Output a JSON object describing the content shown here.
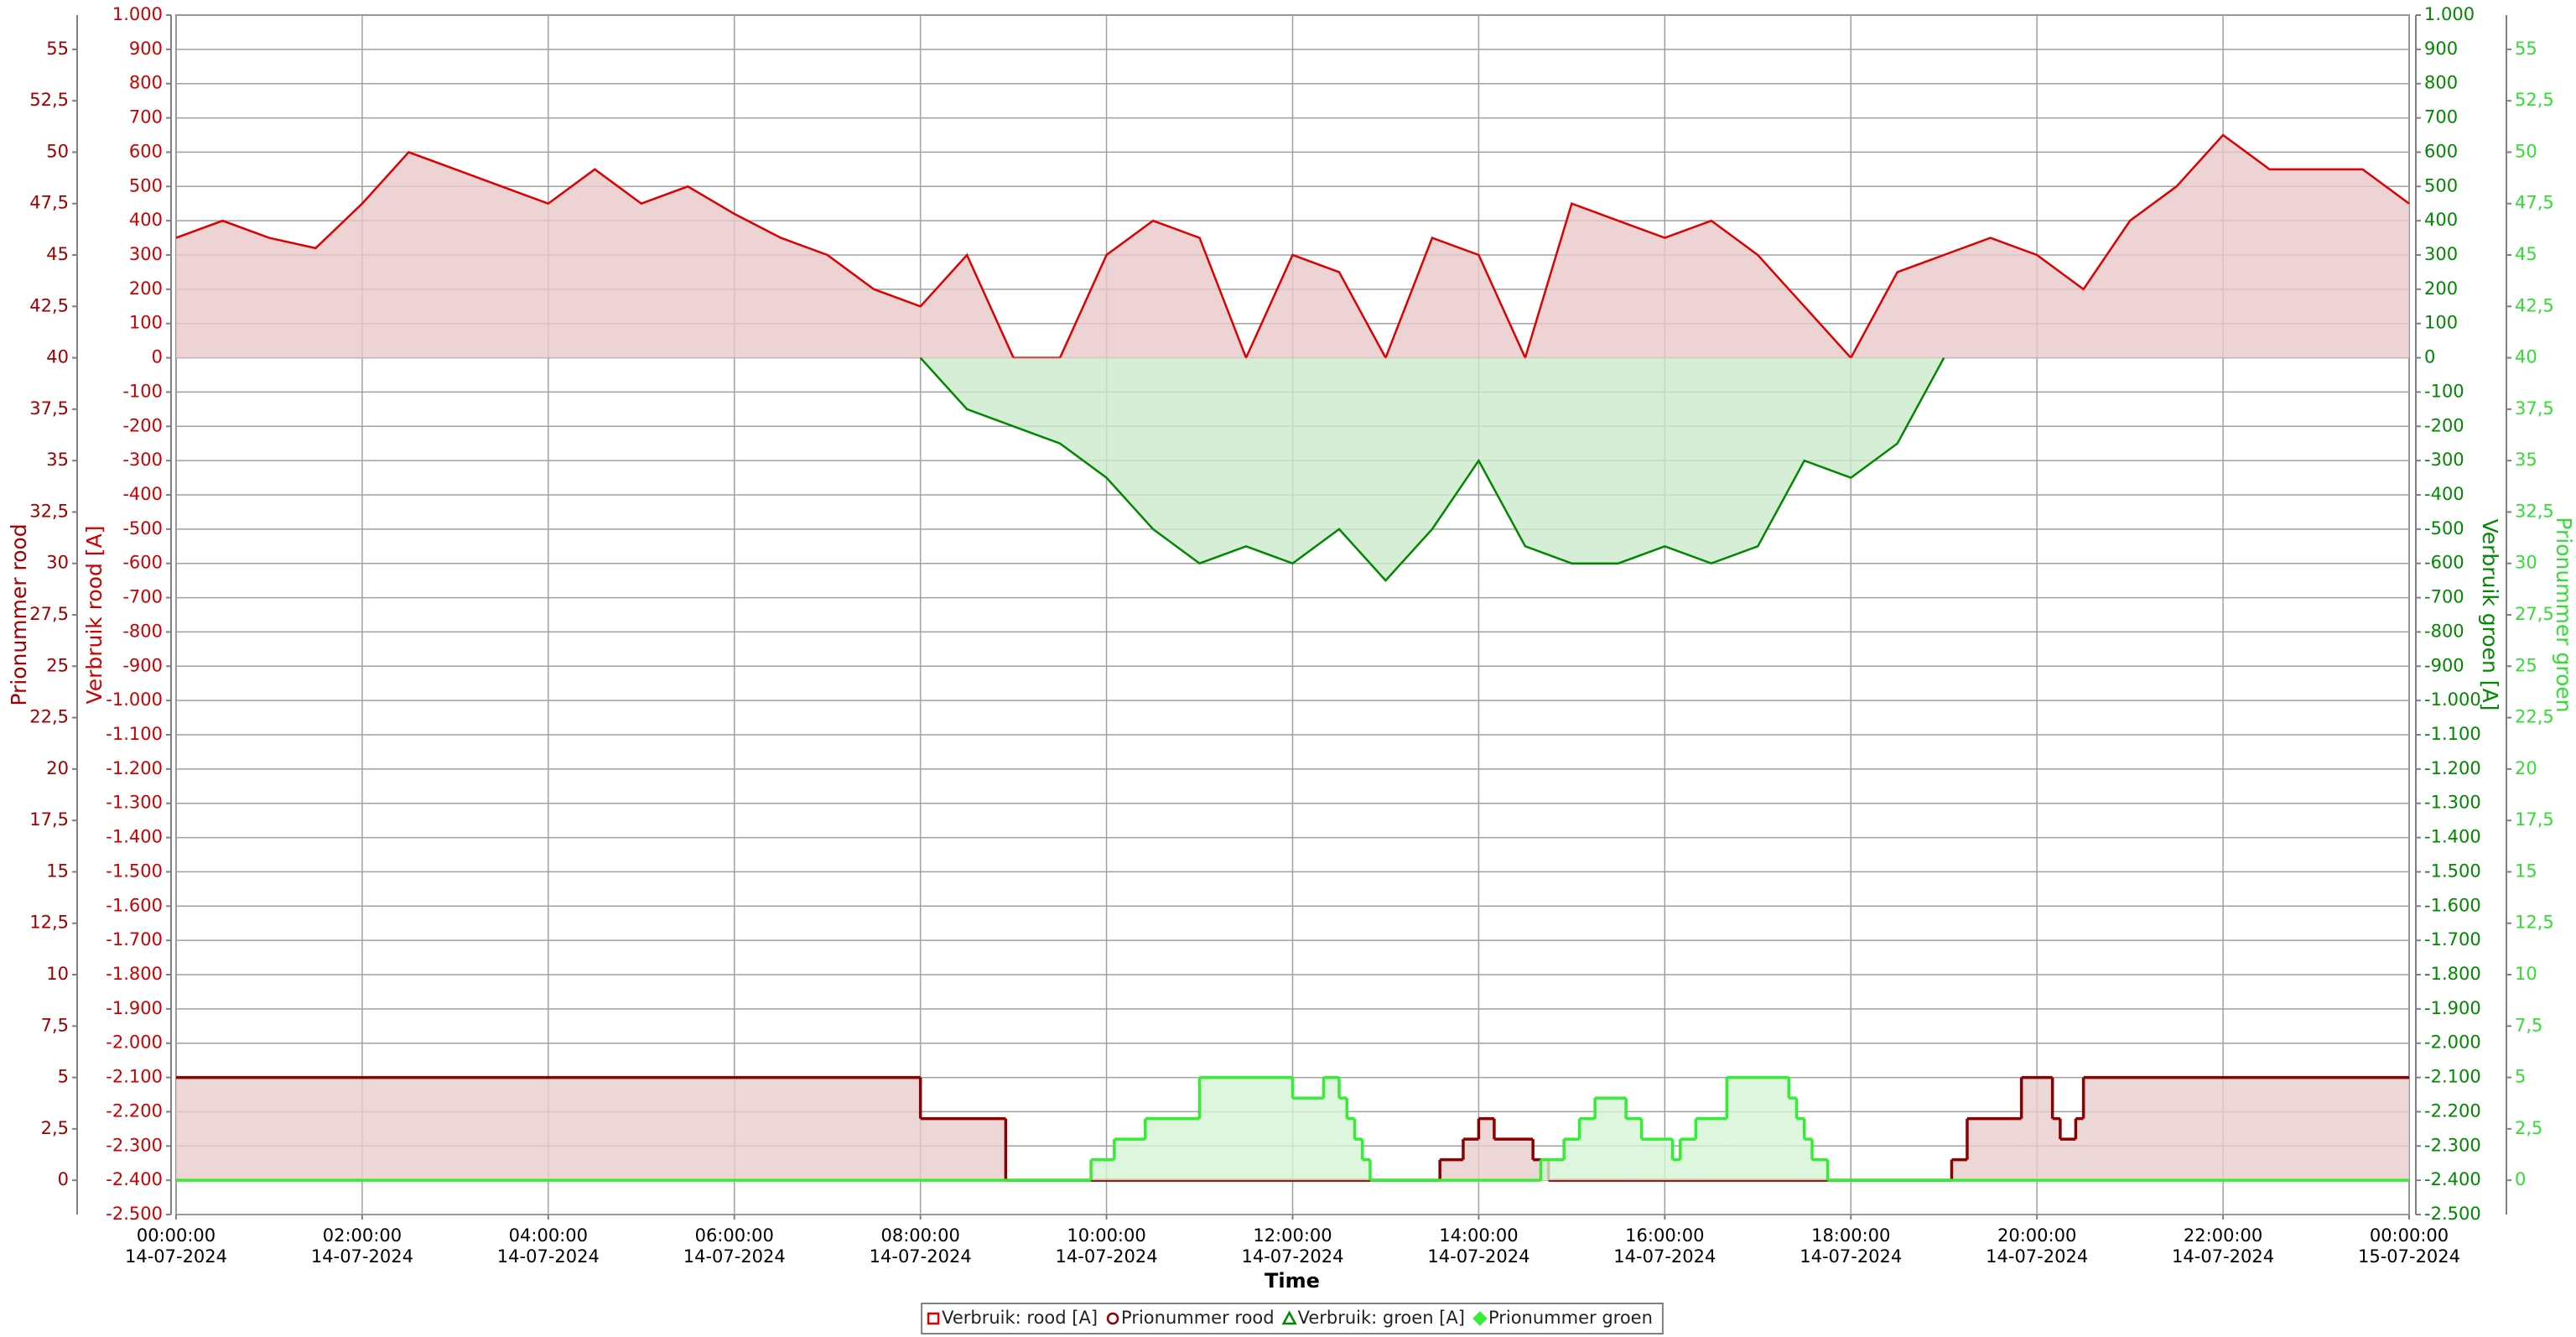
{
  "chart_data": {
    "type": "area",
    "x_label": "Time",
    "y_label": "Verbruik rood [A]",
    "y2_label": "Verbruik groen [A]",
    "y3_label": "Prionummer rood",
    "y4_label": "Prionummer groen",
    "grid": true,
    "legend": "bottom",
    "xlim": [
      "2024-07-14T00:00:00",
      "2024-07-15T00:00:00"
    ],
    "xticks": [
      {
        "value": "2024-07-14T00:00:00",
        "label": "00:00:00 14-07-2024"
      },
      {
        "value": "2024-07-14T02:00:00",
        "label": "02:00:00 14-07-2024"
      },
      {
        "value": "2024-07-14T04:00:00",
        "label": "04:00:00 14-07-2024"
      },
      {
        "value": "2024-07-14T06:00:00",
        "label": "06:00:00 14-07-2024"
      },
      {
        "value": "2024-07-14T08:00:00",
        "label": "08:00:00 14-07-2024"
      },
      {
        "value": "2024-07-14T10:00:00",
        "label": "10:00:00 14-07-2024"
      },
      {
        "value": "2024-07-14T12:00:00",
        "label": "12:00:00 14-07-2024"
      },
      {
        "value": "2024-07-14T14:00:00",
        "label": "14:00:00 14-07-2024"
      },
      {
        "value": "2024-07-14T16:00:00",
        "label": "16:00:00 14-07-2024"
      },
      {
        "value": "2024-07-14T18:00:00",
        "label": "18:00:00 14-07-2024"
      },
      {
        "value": "2024-07-14T20:00:00",
        "label": "20:00:00 14-07-2024"
      },
      {
        "value": "2024-07-14T22:00:00",
        "label": "22:00:00 14-07-2024"
      },
      {
        "value": "2024-07-15T00:00:00",
        "label": "00:00:00 15-07-2024"
      }
    ],
    "ylim": [
      -2500,
      1000
    ],
    "yticks": [
      {
        "value": -2500,
        "label": "-2.500"
      },
      {
        "value": -2400,
        "label": "-2.400"
      },
      {
        "value": -2300,
        "label": "-2.300"
      },
      {
        "value": -2200,
        "label": "-2.200"
      },
      {
        "value": -2100,
        "label": "-2.100"
      },
      {
        "value": -2000,
        "label": "-2.000"
      },
      {
        "value": -1900,
        "label": "-1.900"
      },
      {
        "value": -1800,
        "label": "-1.800"
      },
      {
        "value": -1700,
        "label": "-1.700"
      },
      {
        "value": -1600,
        "label": "-1.600"
      },
      {
        "value": -1500,
        "label": "-1.500"
      },
      {
        "value": -1400,
        "label": "-1.400"
      },
      {
        "value": -1300,
        "label": "-1.300"
      },
      {
        "value": -1200,
        "label": "-1.200"
      },
      {
        "value": -1100,
        "label": "-1.100"
      },
      {
        "value": -1000,
        "label": "-1.000"
      },
      -900,
      -800,
      -700,
      -600,
      -500,
      -400,
      -300,
      -200,
      -100,
      0,
      100,
      200,
      300,
      400,
      500,
      600,
      700,
      800,
      900,
      {
        "value": 1000,
        "label": "1.000"
      }
    ],
    "y2lim": [
      -2500,
      1000
    ],
    "y2ticks": [
      {
        "value": -2500,
        "label": "-2.500"
      },
      {
        "value": -2400,
        "label": "-2.400"
      },
      {
        "value": -2300,
        "label": "-2.300"
      },
      {
        "value": -2200,
        "label": "-2.200"
      },
      {
        "value": -2100,
        "label": "-2.100"
      },
      {
        "value": -2000,
        "label": "-2.000"
      },
      {
        "value": -1900,
        "label": "-1.900"
      },
      {
        "value": -1800,
        "label": "-1.800"
      },
      {
        "value": -1700,
        "label": "-1.700"
      },
      {
        "value": -1600,
        "label": "-1.600"
      },
      {
        "value": -1500,
        "label": "-1.500"
      },
      {
        "value": -1400,
        "label": "-1.400"
      },
      {
        "value": -1300,
        "label": "-1.300"
      },
      {
        "value": -1200,
        "label": "-1.200"
      },
      {
        "value": -1100,
        "label": "-1.100"
      },
      {
        "value": -1000,
        "label": "-1.000"
      },
      -900,
      -800,
      -700,
      -600,
      -500,
      -400,
      -300,
      -200,
      -100,
      0,
      100,
      200,
      300,
      400,
      500,
      600,
      700,
      800,
      900,
      {
        "value": 1000,
        "label": "1.000"
      }
    ],
    "y3lim": [
      -1.6667,
      56.6667
    ],
    "y3ticks": [
      0,
      {
        "value": 2.5,
        "label": "2,5"
      },
      5,
      {
        "value": 7.5,
        "label": "7,5"
      },
      10,
      {
        "value": 12.5,
        "label": "12,5"
      },
      15,
      {
        "value": 17.5,
        "label": "17,5"
      },
      20,
      {
        "value": 22.5,
        "label": "22,5"
      },
      25,
      {
        "value": 27.5,
        "label": "27,5"
      },
      30,
      {
        "value": 32.5,
        "label": "32,5"
      },
      35,
      {
        "value": 37.5,
        "label": "37,5"
      },
      40,
      {
        "value": 42.5,
        "label": "42,5"
      },
      45,
      {
        "value": 47.5,
        "label": "47,5"
      },
      50,
      {
        "value": 52.5,
        "label": "52,5"
      },
      55
    ],
    "y4lim": [
      -1.6667,
      56.6667
    ],
    "y4ticks": [
      0,
      {
        "value": 2.5,
        "label": "2,5"
      },
      5,
      {
        "value": 7.5,
        "label": "7,5"
      },
      10,
      {
        "value": 12.5,
        "label": "12,5"
      },
      15,
      {
        "value": 17.5,
        "label": "17,5"
      },
      20,
      {
        "value": 22.5,
        "label": "22,5"
      },
      25,
      {
        "value": 27.5,
        "label": "27,5"
      },
      30,
      {
        "value": 32.5,
        "label": "32,5"
      },
      35,
      {
        "value": 37.5,
        "label": "37,5"
      },
      40,
      {
        "value": 42.5,
        "label": "42,5"
      },
      45,
      {
        "value": 47.5,
        "label": "47,5"
      },
      50,
      {
        "value": 52.5,
        "label": "52,5"
      },
      55
    ],
    "series": [
      {
        "name": "Verbruik: rood [A]",
        "color": "#dd0000",
        "fill": "#e8c8c8",
        "marker": "square",
        "axis": "y",
        "step": false,
        "x": [
          "2024-07-14T00:00:00",
          "2024-07-14T00:30:00",
          "2024-07-14T01:00:00",
          "2024-07-14T01:30:00",
          "2024-07-14T02:00:00",
          "2024-07-14T02:30:00",
          "2024-07-14T03:00:00",
          "2024-07-14T03:30:00",
          "2024-07-14T04:00:00",
          "2024-07-14T04:30:00",
          "2024-07-14T05:00:00",
          "2024-07-14T05:30:00",
          "2024-07-14T06:00:00",
          "2024-07-14T06:30:00",
          "2024-07-14T07:00:00",
          "2024-07-14T07:30:00",
          "2024-07-14T08:00:00",
          "2024-07-14T08:30:00",
          "2024-07-14T09:00:00",
          "2024-07-14T09:30:00",
          "2024-07-14T10:00:00",
          "2024-07-14T10:30:00",
          "2024-07-14T11:00:00",
          "2024-07-14T11:30:00",
          "2024-07-14T12:00:00",
          "2024-07-14T12:30:00",
          "2024-07-14T13:00:00",
          "2024-07-14T13:30:00",
          "2024-07-14T14:00:00",
          "2024-07-14T14:30:00",
          "2024-07-14T15:00:00",
          "2024-07-14T15:30:00",
          "2024-07-14T16:00:00",
          "2024-07-14T16:30:00",
          "2024-07-14T17:00:00",
          "2024-07-14T17:30:00",
          "2024-07-14T18:00:00",
          "2024-07-14T18:30:00",
          "2024-07-14T19:00:00",
          "2024-07-14T19:30:00",
          "2024-07-14T20:00:00",
          "2024-07-14T20:30:00",
          "2024-07-14T21:00:00",
          "2024-07-14T21:30:00",
          "2024-07-14T22:00:00",
          "2024-07-14T22:30:00",
          "2024-07-14T23:00:00",
          "2024-07-14T23:30:00",
          "2024-07-15T00:00:00"
        ],
        "values": [
          350,
          400,
          350,
          320,
          450,
          600,
          550,
          500,
          450,
          550,
          450,
          500,
          420,
          350,
          300,
          200,
          150,
          300,
          0,
          0,
          300,
          400,
          350,
          0,
          300,
          250,
          0,
          350,
          300,
          0,
          450,
          400,
          350,
          400,
          300,
          150,
          0,
          250,
          300,
          350,
          300,
          200,
          400,
          500,
          650,
          550,
          550,
          550,
          450
        ]
      },
      {
        "name": "Prionummer rood",
        "color": "#8b0000",
        "fill": "#e8cccc",
        "marker": "circle",
        "axis": "y3",
        "step": true,
        "x": [
          "2024-07-14T00:00:00",
          "2024-07-14T08:00:00",
          "2024-07-14T08:55:00",
          "2024-07-14T13:35:00",
          "2024-07-14T13:50:00",
          "2024-07-14T14:00:00",
          "2024-07-14T14:10:00",
          "2024-07-14T14:35:00",
          "2024-07-14T14:45:00",
          "2024-07-14T19:05:00",
          "2024-07-14T19:15:00",
          "2024-07-14T19:50:00",
          "2024-07-14T20:10:00",
          "2024-07-14T20:15:00",
          "2024-07-14T20:25:00",
          "2024-07-14T20:30:00"
        ],
        "values": [
          5,
          3,
          0,
          1,
          2,
          3,
          2,
          1,
          0,
          1,
          3,
          5,
          3,
          2,
          3,
          5
        ]
      },
      {
        "name": "Verbruik: groen [A]",
        "color": "#008800",
        "fill": "#cce8cc",
        "marker": "triangle",
        "axis": "y2",
        "step": false,
        "x": [
          "2024-07-14T08:00:00",
          "2024-07-14T08:30:00",
          "2024-07-14T09:00:00",
          "2024-07-14T09:30:00",
          "2024-07-14T10:00:00",
          "2024-07-14T10:30:00",
          "2024-07-14T11:00:00",
          "2024-07-14T11:30:00",
          "2024-07-14T12:00:00",
          "2024-07-14T12:30:00",
          "2024-07-14T13:00:00",
          "2024-07-14T13:30:00",
          "2024-07-14T14:00:00",
          "2024-07-14T14:30:00",
          "2024-07-14T15:00:00",
          "2024-07-14T15:30:00",
          "2024-07-14T16:00:00",
          "2024-07-14T16:30:00",
          "2024-07-14T17:00:00",
          "2024-07-14T17:30:00",
          "2024-07-14T18:00:00",
          "2024-07-14T18:30:00",
          "2024-07-14T19:00:00"
        ],
        "values": [
          0,
          -150,
          -200,
          -250,
          -350,
          -500,
          -600,
          -550,
          -600,
          -500,
          -650,
          -500,
          -300,
          -550,
          -600,
          -600,
          -550,
          -600,
          -550,
          -300,
          -350,
          -250,
          0
        ]
      },
      {
        "name": "Prionummer groen",
        "color": "#33ee33",
        "fill": "#d4f4d4",
        "marker": "diamond",
        "axis": "y4",
        "step": true,
        "x": [
          "2024-07-14T00:00:00",
          "2024-07-14T09:50:00",
          "2024-07-14T10:05:00",
          "2024-07-14T10:25:00",
          "2024-07-14T11:00:00",
          "2024-07-14T12:00:00",
          "2024-07-14T12:20:00",
          "2024-07-14T12:30:00",
          "2024-07-14T12:35:00",
          "2024-07-14T12:40:00",
          "2024-07-14T12:45:00",
          "2024-07-14T12:50:00",
          "2024-07-14T14:40:00",
          "2024-07-14T14:55:00",
          "2024-07-14T15:05:00",
          "2024-07-14T15:15:00",
          "2024-07-14T15:35:00",
          "2024-07-14T15:45:00",
          "2024-07-14T16:05:00",
          "2024-07-14T16:10:00",
          "2024-07-14T16:20:00",
          "2024-07-14T16:40:00",
          "2024-07-14T17:20:00",
          "2024-07-14T17:25:00",
          "2024-07-14T17:30:00",
          "2024-07-14T17:35:00",
          "2024-07-14T17:45:00"
        ],
        "values": [
          0,
          1,
          2,
          3,
          5,
          4,
          5,
          4,
          3,
          2,
          1,
          0,
          1,
          2,
          3,
          4,
          3,
          2,
          1,
          2,
          3,
          5,
          4,
          3,
          2,
          1,
          0
        ]
      }
    ]
  }
}
